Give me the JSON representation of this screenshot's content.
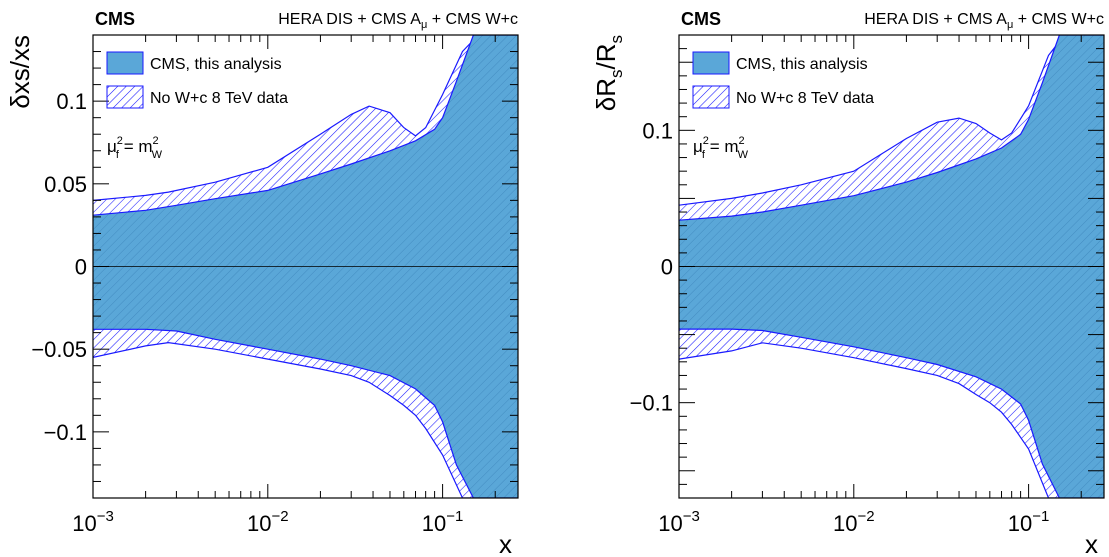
{
  "chart_data": [
    {
      "type": "area",
      "experiment": "CMS",
      "title": "HERA DIS + CMS A_μ + CMS W+c",
      "title_parts": {
        "main": "HERA DIS + CMS A",
        "sub": "μ",
        "tail": " + CMS W+c"
      },
      "xlabel": "x",
      "ylabel": "δxs/xs",
      "ylabel_parts": {
        "main": "δxs/xs",
        "sub1": "",
        "mid": "",
        "sub2": ""
      },
      "xscale": "log",
      "xlim": [
        0.001,
        0.27
      ],
      "ylim": [
        -0.14,
        0.14
      ],
      "xticks": [
        0.001,
        0.01,
        0.1
      ],
      "xtick_labels": [
        {
          "base": "10",
          "exp": "−3"
        },
        {
          "base": "10",
          "exp": "−2"
        },
        {
          "base": "10",
          "exp": "−1"
        }
      ],
      "yticks": [
        -0.1,
        -0.05,
        0,
        0.05,
        0.1
      ],
      "ytick_labels": [
        "−0.1",
        "−0.05",
        "0",
        "0.05",
        "0.1"
      ],
      "annotation": {
        "mu": "μ",
        "f": "f",
        "eq": " = m",
        "W": "W",
        "sq": "2"
      },
      "legend": {
        "placement": "top-left",
        "entries": [
          {
            "label": "CMS, this analysis",
            "style": "solid-blue-fill"
          },
          {
            "label": "No W+c 8 TeV data",
            "style": "blue-hatch"
          }
        ]
      },
      "series": [
        {
          "name": "CMS, this analysis",
          "x": [
            0.001,
            0.002,
            0.003,
            0.005,
            0.01,
            0.02,
            0.03,
            0.05,
            0.07,
            0.09,
            0.1,
            0.12,
            0.15,
            0.2,
            0.27
          ],
          "upper": [
            0.031,
            0.034,
            0.037,
            0.041,
            0.046,
            0.056,
            0.062,
            0.07,
            0.076,
            0.083,
            0.09,
            0.112,
            0.14,
            0.14,
            0.14
          ],
          "lower": [
            -0.038,
            -0.038,
            -0.039,
            -0.044,
            -0.05,
            -0.056,
            -0.06,
            -0.066,
            -0.074,
            -0.084,
            -0.094,
            -0.12,
            -0.14,
            -0.14,
            -0.14
          ]
        },
        {
          "name": "No W+c 8 TeV data",
          "x": [
            0.001,
            0.002,
            0.0027,
            0.005,
            0.01,
            0.02,
            0.03,
            0.038,
            0.05,
            0.06,
            0.07,
            0.08,
            0.1,
            0.13,
            0.16,
            0.27
          ],
          "upper": [
            0.04,
            0.043,
            0.045,
            0.051,
            0.06,
            0.08,
            0.092,
            0.097,
            0.093,
            0.084,
            0.079,
            0.084,
            0.104,
            0.13,
            0.14,
            0.14
          ],
          "lower": [
            -0.055,
            -0.048,
            -0.046,
            -0.05,
            -0.056,
            -0.062,
            -0.066,
            -0.07,
            -0.078,
            -0.084,
            -0.09,
            -0.098,
            -0.114,
            -0.14,
            -0.14,
            -0.14
          ]
        }
      ]
    },
    {
      "type": "area",
      "experiment": "CMS",
      "title": "HERA DIS + CMS A_μ + CMS W+c",
      "title_parts": {
        "main": "HERA DIS + CMS A",
        "sub": "μ",
        "tail": " + CMS W+c"
      },
      "xlabel": "x",
      "ylabel": "δR_s/R_s",
      "ylabel_parts": {
        "main": "δR",
        "sub1": "s",
        "mid": "/R",
        "sub2": "s"
      },
      "xscale": "log",
      "xlim": [
        0.001,
        0.27
      ],
      "ylim": [
        -0.17,
        0.17
      ],
      "xticks": [
        0.001,
        0.01,
        0.1
      ],
      "xtick_labels": [
        {
          "base": "10",
          "exp": "−3"
        },
        {
          "base": "10",
          "exp": "−2"
        },
        {
          "base": "10",
          "exp": "−1"
        }
      ],
      "yticks": [
        -0.1,
        0,
        0.1
      ],
      "ytick_labels": [
        "−0.1",
        "0",
        "0.1"
      ],
      "annotation": {
        "mu": "μ",
        "f": "f",
        "eq": " = m",
        "W": "W",
        "sq": "2"
      },
      "legend": {
        "placement": "top-left",
        "entries": [
          {
            "label": "CMS, this analysis",
            "style": "solid-blue-fill"
          },
          {
            "label": "No W+c 8 TeV data",
            "style": "blue-hatch"
          }
        ]
      },
      "series": [
        {
          "name": "CMS, this analysis",
          "x": [
            0.001,
            0.002,
            0.003,
            0.005,
            0.01,
            0.02,
            0.03,
            0.05,
            0.07,
            0.09,
            0.1,
            0.12,
            0.15,
            0.2,
            0.27
          ],
          "upper": [
            0.034,
            0.037,
            0.04,
            0.045,
            0.052,
            0.062,
            0.069,
            0.079,
            0.087,
            0.097,
            0.108,
            0.135,
            0.17,
            0.17,
            0.17
          ],
          "lower": [
            -0.046,
            -0.046,
            -0.047,
            -0.052,
            -0.059,
            -0.067,
            -0.072,
            -0.081,
            -0.09,
            -0.101,
            -0.113,
            -0.145,
            -0.17,
            -0.17,
            -0.17
          ]
        },
        {
          "name": "No W+c 8 TeV data",
          "x": [
            0.001,
            0.002,
            0.003,
            0.005,
            0.01,
            0.02,
            0.03,
            0.04,
            0.05,
            0.06,
            0.07,
            0.08,
            0.1,
            0.13,
            0.16,
            0.27
          ],
          "upper": [
            0.045,
            0.05,
            0.054,
            0.06,
            0.07,
            0.094,
            0.106,
            0.109,
            0.105,
            0.098,
            0.093,
            0.098,
            0.118,
            0.155,
            0.17,
            0.17
          ],
          "lower": [
            -0.068,
            -0.062,
            -0.056,
            -0.06,
            -0.067,
            -0.075,
            -0.08,
            -0.086,
            -0.094,
            -0.1,
            -0.107,
            -0.116,
            -0.134,
            -0.17,
            -0.17,
            -0.17
          ]
        }
      ]
    }
  ]
}
